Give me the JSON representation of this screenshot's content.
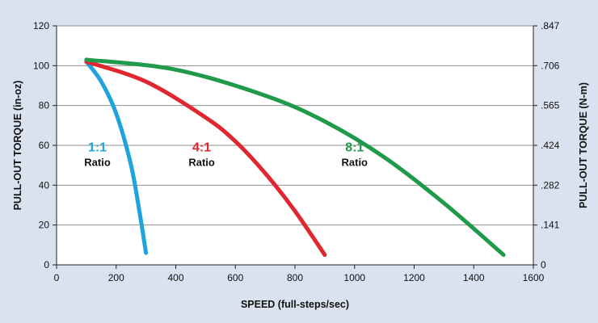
{
  "chart_data": {
    "type": "line",
    "xlabel": "SPEED (full-steps/sec)",
    "ylabel": "PULL-OUT TORQUE (in-oz)",
    "y2label": "PULL-OUT TORQUE (N-m)",
    "xlim": [
      0,
      1600
    ],
    "ylim": [
      0,
      120
    ],
    "x_ticks": [
      0,
      200,
      400,
      600,
      800,
      1000,
      1200,
      1400,
      1600
    ],
    "y_ticks": [
      0,
      20,
      40,
      60,
      80,
      100,
      120
    ],
    "y2_ticks": [
      {
        "value": 0,
        "label": "0"
      },
      {
        "value": 20,
        "label": ".141"
      },
      {
        "value": 40,
        "label": ".282"
      },
      {
        "value": 60,
        "label": ".424"
      },
      {
        "value": 80,
        "label": ".565"
      },
      {
        "value": 100,
        "label": ".706"
      },
      {
        "value": 120,
        "label": ".847"
      }
    ],
    "grid": "horizontal",
    "colors": {
      "background": "#d9e2ee",
      "plot_background": "#ffffff",
      "grid": "#8f8f8f",
      "axis": "#222222"
    },
    "series": [
      {
        "color": "#1fa3dc",
        "x": [
          100,
          150,
          200,
          250,
          280,
          300
        ],
        "y": [
          102,
          92,
          76,
          50,
          25,
          6
        ]
      },
      {
        "color": "#e0262e",
        "x": [
          100,
          300,
          500,
          600,
          700,
          800,
          900
        ],
        "y": [
          102,
          92,
          74,
          62,
          46,
          27,
          5
        ]
      },
      {
        "color": "#1f9a4b",
        "x": [
          100,
          400,
          700,
          900,
          1100,
          1300,
          1500
        ],
        "y": [
          103,
          98,
          85,
          72,
          54,
          31,
          5
        ]
      }
    ],
    "annotations": [
      {
        "ratio": "1:1",
        "word": "Ratio",
        "color": "#1fa3dc",
        "x": 137,
        "y": 57
      },
      {
        "ratio": "4:1",
        "word": "Ratio",
        "color": "#e0262e",
        "x": 487,
        "y": 57
      },
      {
        "ratio": "8:1",
        "word": "Ratio",
        "color": "#1f9a4b",
        "x": 1000,
        "y": 57
      }
    ]
  }
}
